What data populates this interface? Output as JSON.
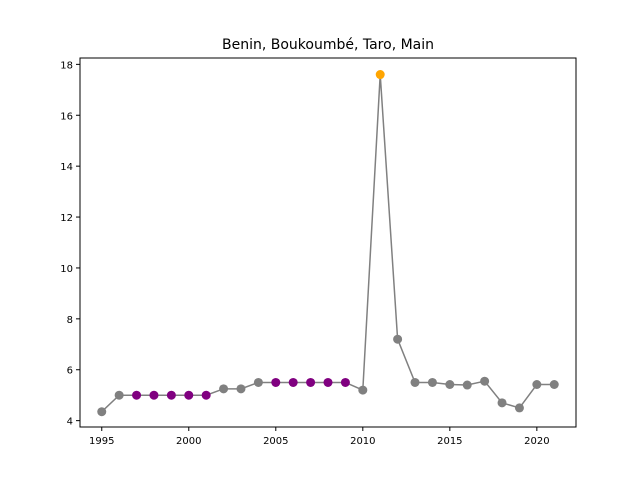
{
  "chart_data": {
    "type": "line",
    "title": "Benin, Boukoumbé, Taro, Main",
    "xlabel": "",
    "ylabel": "",
    "xlim": [
      1993.75,
      2022.25
    ],
    "ylim": [
      3.75,
      18.25
    ],
    "x_ticks": [
      1995,
      2000,
      2005,
      2010,
      2015,
      2020
    ],
    "y_ticks": [
      4,
      6,
      8,
      10,
      12,
      14,
      16,
      18
    ],
    "grid": false,
    "line_color": "#808080",
    "series": [
      {
        "x": [
          1995,
          1996,
          1997,
          1998,
          1999,
          2000,
          2001,
          2002,
          2003,
          2004,
          2005,
          2006,
          2007,
          2008,
          2009,
          2010,
          2011,
          2012,
          2013,
          2014,
          2015,
          2016,
          2017,
          2018,
          2019,
          2020,
          2021
        ],
        "y": [
          4.35,
          5.0,
          5.0,
          5.0,
          5.0,
          5.0,
          5.0,
          5.25,
          5.25,
          5.5,
          5.5,
          5.5,
          5.5,
          5.5,
          5.5,
          5.2,
          17.6,
          7.2,
          5.5,
          5.5,
          5.42,
          5.4,
          5.55,
          4.7,
          4.5,
          5.42,
          5.42
        ],
        "point_colors": [
          "#808080",
          "#808080",
          "#800080",
          "#800080",
          "#800080",
          "#800080",
          "#800080",
          "#808080",
          "#808080",
          "#808080",
          "#800080",
          "#800080",
          "#800080",
          "#800080",
          "#800080",
          "#808080",
          "#ffa500",
          "#808080",
          "#808080",
          "#808080",
          "#808080",
          "#808080",
          "#808080",
          "#808080",
          "#808080",
          "#808080",
          "#808080"
        ]
      }
    ]
  }
}
